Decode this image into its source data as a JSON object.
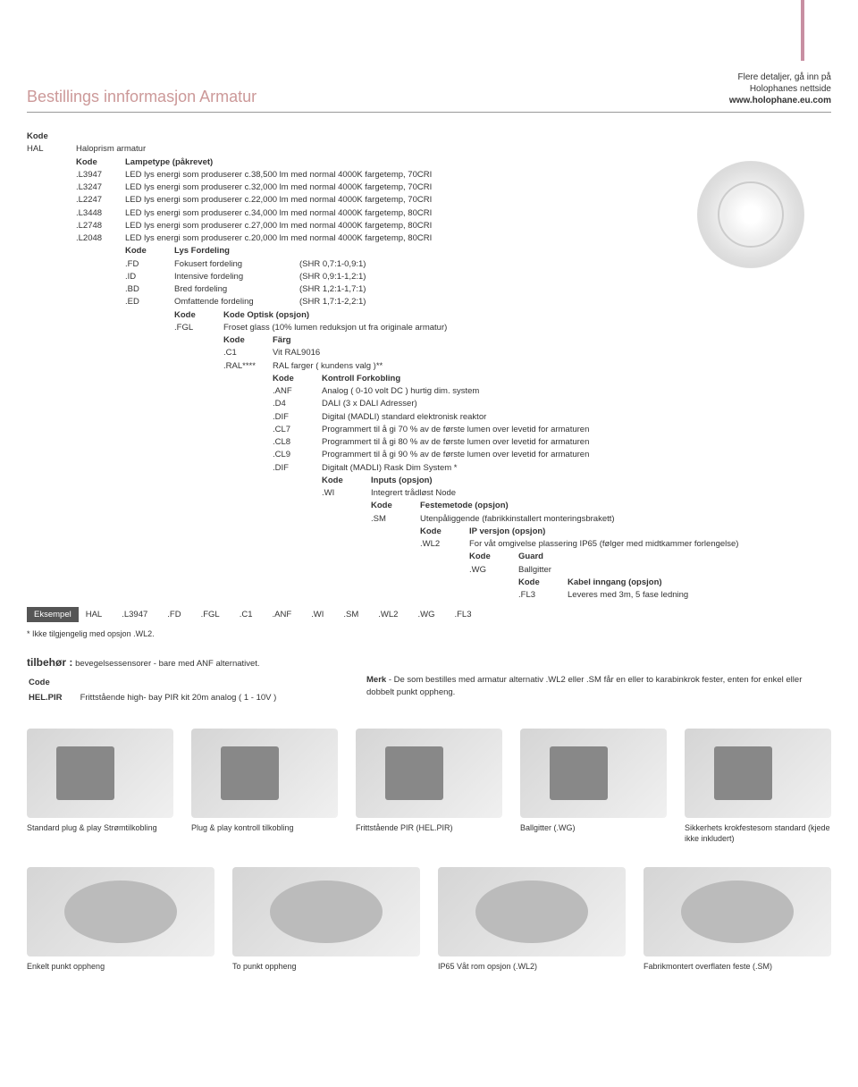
{
  "header": {
    "title": "Bestillings innformasjon Armatur",
    "right_line1": "Flere detaljer, gå inn på",
    "right_line2": "Holophanes nettside",
    "right_link": "www.holophane.eu.com"
  },
  "root": {
    "kode": "Kode",
    "hal_code": "HAL",
    "hal_desc": "Haloprism armatur"
  },
  "lampetype": {
    "kode": "Kode",
    "label": "Lampetype (påkrevet)",
    "rows": [
      {
        "code": ".L3947",
        "desc": "LED lys energi som produserer c.38,500 lm med normal 4000K fargetemp, 70CRI"
      },
      {
        "code": ".L3247",
        "desc": "LED lys energi som produserer c.32,000 lm med normal 4000K fargetemp, 70CRI"
      },
      {
        "code": ".L2247",
        "desc": "LED lys energi som produserer c.22,000 lm med normal 4000K fargetemp, 70CRI"
      },
      {
        "code": ".L3448",
        "desc": "LED lys energi som produserer c.34,000 lm med normal 4000K fargetemp, 80CRI"
      },
      {
        "code": ".L2748",
        "desc": "LED lys energi som produserer c.27,000 lm med normal 4000K fargetemp, 80CRI"
      },
      {
        "code": ".L2048",
        "desc": "LED lys energi som produserer c.20,000 lm med normal 4000K fargetemp, 80CRI"
      }
    ]
  },
  "lysfordeling": {
    "kode": "Kode",
    "label": "Lys Fordeling",
    "rows": [
      {
        "code": ".FD",
        "desc": "Fokusert fordeling",
        "extra": "(SHR 0,7:1-0,9:1)"
      },
      {
        "code": ".ID",
        "desc": "Intensive fordeling",
        "extra": "(SHR 0,9:1-1,2:1)"
      },
      {
        "code": ".BD",
        "desc": "Bred fordeling",
        "extra": "(SHR 1,2:1-1,7:1)"
      },
      {
        "code": ".ED",
        "desc": "Omfattende fordeling",
        "extra": "(SHR 1,7:1-2,2:1)"
      }
    ]
  },
  "optisk": {
    "kode": "Kode",
    "label": "Kode Optisk (opsjon)",
    "rows": [
      {
        "code": ".FGL",
        "desc": "Froset glass (10% lumen reduksjon ut fra originale  armatur)"
      }
    ]
  },
  "farg": {
    "kode": "Kode",
    "label": "Färg",
    "rows": [
      {
        "code": ".C1",
        "desc": "Vit RAL9016"
      },
      {
        "code": ".RAL****",
        "desc": "RAL farger ( kundens valg )**"
      }
    ]
  },
  "kontroll": {
    "kode": "Kode",
    "label": "Kontroll Forkobling",
    "rows": [
      {
        "code": ".ANF",
        "desc": "Analog ( 0-10 volt DC ) hurtig dim. system"
      },
      {
        "code": ".D4",
        "desc": "DALI  (3 x DALI Adresser)"
      },
      {
        "code": ".DIF",
        "desc": "Digital (MADLI) standard elektronisk reaktor"
      },
      {
        "code": ".CL7",
        "desc": "Programmert til å gi 70 % av de første lumen over levetid for armaturen"
      },
      {
        "code": ".CL8",
        "desc": "Programmert til å gi 80 % av de første lumen over levetid for armaturen"
      },
      {
        "code": ".CL9",
        "desc": "Programmert til å gi 90 % av de første lumen over levetid for armaturen"
      },
      {
        "code": ".DIF",
        "desc": "Digitalt (MADLI) Rask Dim System *"
      }
    ]
  },
  "inputs": {
    "kode": "Kode",
    "label": "Inputs (opsjon)",
    "rows": [
      {
        "code": ".WI",
        "desc": "Integrert trådløst Node"
      }
    ]
  },
  "feste": {
    "kode": "Kode",
    "label": "Festemetode (opsjon)",
    "rows": [
      {
        "code": ".SM",
        "desc": "Utenpåliggende (fabrikkinstallert  monteringsbrakett)"
      }
    ]
  },
  "ip": {
    "kode": "Kode",
    "label": "IP versjon (opsjon)",
    "rows": [
      {
        "code": ".WL2",
        "desc": "For våt omgivelse plassering IP65 (følger med midtkammer forlengelse)"
      }
    ]
  },
  "guard": {
    "kode": "Kode",
    "label": "Guard",
    "rows": [
      {
        "code": ".WG",
        "desc": "Ballgitter"
      }
    ]
  },
  "kabel": {
    "kode": "Kode",
    "label": "Kabel inngang (opsjon)",
    "rows": [
      {
        "code": ".FL3",
        "desc": "Leveres med 3m, 5 fase ledning"
      }
    ]
  },
  "example": {
    "label": "Eksempel",
    "cells": [
      "HAL",
      ".L3947",
      ".FD",
      ".FGL",
      ".C1",
      ".ANF",
      ".WI",
      ".SM",
      ".WL2",
      ".WG",
      ".FL3"
    ]
  },
  "footnote": "* Ikke tilgjengelig med opsjon .WL2.",
  "tilbehor": {
    "title": "tilbehør :",
    "subtitle": "bevegelsessensorer - bare med ANF alternativet.",
    "table_header": "Code",
    "row_code": "HEL.PIR",
    "row_desc": "Frittstående high- bay PIR kit 20m analog ( 1 - 10V )",
    "merk_label": "Merk",
    "merk_text": " - De som bestilles med armatur alternativ .WL2 eller .SM får en eller to karabinkrok fester, enten for enkel eller dobbelt punkt oppheng."
  },
  "image_row1": [
    {
      "caption": "Standard plug & play Strømtilkobling"
    },
    {
      "caption": "Plug & play kontroll tilkobling"
    },
    {
      "caption": "Frittstående PIR (HEL.PIR)"
    },
    {
      "caption": "Ballgitter (.WG)"
    },
    {
      "caption": "Sikkerhets krokfestesom standard (kjede ikke inkludert)"
    }
  ],
  "image_row2": [
    {
      "caption": "Enkelt punkt oppheng"
    },
    {
      "caption": "To punkt oppheng"
    },
    {
      "caption": "IP65 Våt rom opsjon (.WL2)"
    },
    {
      "caption": "Fabrikmontert overflaten feste (.SM)"
    }
  ]
}
